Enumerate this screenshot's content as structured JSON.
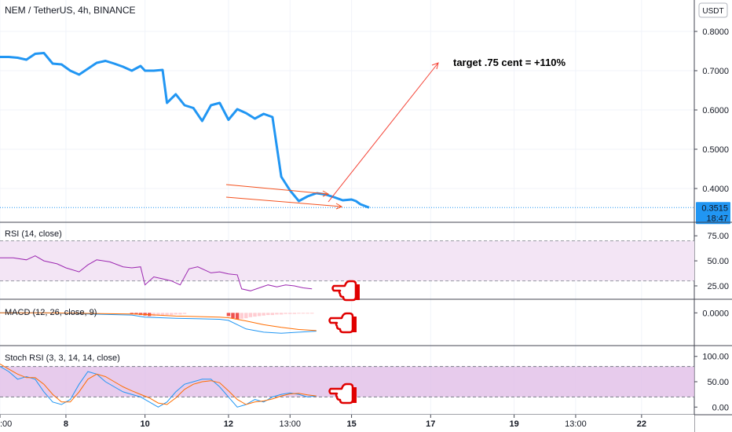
{
  "header": {
    "title": "NEM / TetherUS, 4h, BINANCE",
    "currency_button": "USDT"
  },
  "colors": {
    "price_line": "#2196f3",
    "annotation": "#f44336",
    "rsi_line": "#9c27b0",
    "rsi_band": "#f3e5f5",
    "stoch_band": "#e1bee7",
    "macd_line": "#2196f3",
    "signal_line": "#ff6d00",
    "hist_neg_strong": "#ef5350",
    "hist_neg_weak": "#ffcdd2",
    "price_tag": "#2196f3",
    "grid": "#f0f3fa"
  },
  "icons": {
    "pointing_hand": "pointing-hand-icon"
  },
  "chart_data": [
    {
      "type": "line",
      "pane": "price",
      "title": "NEM / TetherUS, 4h, BINANCE",
      "ylim": [
        0.33,
        0.83
      ],
      "y_ticks": [
        0.4,
        0.5,
        0.6,
        0.7,
        0.8
      ],
      "y_tick_labels": [
        "0.4000",
        "0.5000",
        "0.6000",
        "0.7000",
        "0.8000"
      ],
      "x_ticks": [
        {
          "x": 0,
          "label": ":00"
        },
        {
          "x": 15,
          "label": "8"
        },
        {
          "x": 33,
          "label": "10"
        },
        {
          "x": 52,
          "label": "12"
        },
        {
          "x": 66,
          "label": "13:00"
        },
        {
          "x": 80,
          "label": "15"
        },
        {
          "x": 98,
          "label": "17"
        },
        {
          "x": 117,
          "label": "19"
        },
        {
          "x": 131,
          "label": "13:00"
        },
        {
          "x": 146,
          "label": "22"
        }
      ],
      "xlim": [
        0,
        158
      ],
      "x": [
        0,
        2,
        4,
        6,
        8,
        10,
        12,
        14,
        16,
        18,
        20,
        22,
        24,
        26,
        28,
        30,
        32,
        33,
        35,
        37,
        38,
        40,
        42,
        44,
        46,
        48,
        50,
        52,
        54,
        56,
        58,
        60,
        62,
        64,
        66,
        68,
        70,
        72
      ],
      "values": [
        0.735,
        0.735,
        0.733,
        0.728,
        0.743,
        0.745,
        0.718,
        0.716,
        0.7,
        0.69,
        0.705,
        0.72,
        0.725,
        0.718,
        0.71,
        0.7,
        0.712,
        0.7,
        0.7,
        0.702,
        0.618,
        0.64,
        0.612,
        0.605,
        0.572,
        0.612,
        0.618,
        0.575,
        0.602,
        0.592,
        0.578,
        0.59,
        0.582,
        0.43,
        0.395,
        0.368,
        0.38,
        0.388
      ],
      "last_value_label": "0.3515",
      "countdown_label": "18:47",
      "last_value": 0.3515,
      "current_price_line": 0.3515
    },
    {
      "type": "line",
      "pane": "rsi",
      "title": "RSI (14, close)",
      "ylim": [
        14,
        83
      ],
      "y_ticks": [
        25,
        50,
        75
      ],
      "y_tick_labels": [
        "25.00",
        "50.00",
        "75.00"
      ],
      "band": [
        30,
        70
      ],
      "x": [
        0,
        3,
        6,
        8,
        10,
        13,
        15,
        18,
        20,
        22,
        25,
        28,
        30,
        32,
        33,
        35,
        37,
        39,
        41,
        43,
        45,
        48,
        50,
        52,
        54,
        55,
        57,
        59,
        61,
        63,
        65,
        67,
        69,
        71
      ],
      "values": [
        53,
        53,
        51,
        55,
        50,
        47,
        43,
        39,
        46,
        51,
        49,
        44,
        43,
        44,
        26,
        34,
        32,
        30,
        26,
        42,
        44,
        38,
        39,
        37,
        36,
        22,
        20,
        23,
        26,
        24,
        26,
        25,
        23,
        22
      ]
    },
    {
      "type": "line",
      "pane": "macd",
      "title": "MACD (12, 26, close, 9)",
      "y_ticks": [
        0
      ],
      "y_tick_labels": [
        "0.0000"
      ],
      "ylim": [
        -0.058,
        0.018
      ],
      "series": [
        {
          "name": "",
          "x": [
            0,
            10,
            20,
            30,
            33,
            40,
            50,
            52,
            56,
            60,
            64,
            68,
            72
          ],
          "values": [
            0,
            0,
            -0.002,
            -0.004,
            -0.008,
            -0.01,
            -0.012,
            -0.014,
            -0.03,
            -0.036,
            -0.038,
            -0.036,
            -0.034
          ]
        },
        {
          "name": "",
          "x": [
            0,
            10,
            20,
            30,
            33,
            40,
            50,
            52,
            56,
            60,
            64,
            68,
            72
          ],
          "values": [
            0,
            0,
            -0.001,
            -0.002,
            -0.003,
            -0.006,
            -0.008,
            -0.009,
            -0.015,
            -0.022,
            -0.027,
            -0.031,
            -0.033
          ]
        }
      ],
      "histogram": {
        "x": [
          30,
          31,
          32,
          33,
          34,
          35,
          36,
          37,
          38,
          39,
          40,
          41,
          42,
          52,
          53,
          54,
          55,
          56,
          57,
          58,
          59,
          60,
          61,
          62,
          63,
          64,
          65,
          66,
          67,
          68,
          69,
          70,
          71
        ],
        "values": [
          -0.002,
          -0.003,
          -0.004,
          -0.005,
          -0.006,
          -0.006,
          -0.005,
          -0.005,
          -0.004,
          -0.004,
          -0.003,
          -0.003,
          -0.002,
          -0.006,
          -0.01,
          -0.012,
          -0.011,
          -0.01,
          -0.008,
          -0.007,
          -0.006,
          -0.005,
          -0.004,
          -0.004,
          -0.003,
          -0.003,
          -0.002,
          -0.002,
          -0.002,
          -0.001,
          -0.001,
          -0.001,
          -0.001
        ]
      }
    },
    {
      "type": "line",
      "pane": "stoch",
      "title": "Stoch RSI (3, 3, 14, 14, close)",
      "ylim": [
        -12,
        112
      ],
      "y_ticks": [
        0,
        50,
        100
      ],
      "y_tick_labels": [
        "0.00",
        "50.00",
        "100.00"
      ],
      "band": [
        20,
        80
      ],
      "series": [
        {
          "name": "",
          "x": [
            0,
            2,
            4,
            6,
            8,
            10,
            12,
            14,
            16,
            18,
            20,
            22,
            24,
            26,
            28,
            30,
            32,
            34,
            36,
            38,
            40,
            42,
            44,
            46,
            48,
            50,
            52,
            54,
            56,
            58,
            60,
            62,
            64,
            66,
            68,
            70,
            72
          ],
          "values": [
            80,
            70,
            55,
            60,
            55,
            30,
            10,
            5,
            15,
            45,
            70,
            65,
            50,
            40,
            30,
            25,
            20,
            10,
            0,
            10,
            30,
            45,
            50,
            55,
            55,
            40,
            20,
            0,
            5,
            15,
            10,
            20,
            25,
            28,
            25,
            20,
            22
          ]
        },
        {
          "name": "",
          "x": [
            0,
            2,
            4,
            6,
            8,
            10,
            12,
            14,
            16,
            18,
            20,
            22,
            24,
            26,
            28,
            30,
            32,
            34,
            36,
            38,
            40,
            42,
            44,
            46,
            48,
            50,
            52,
            54,
            56,
            58,
            60,
            62,
            64,
            66,
            68,
            70,
            72
          ],
          "values": [
            85,
            75,
            65,
            58,
            58,
            45,
            25,
            10,
            10,
            30,
            55,
            65,
            60,
            50,
            40,
            32,
            25,
            18,
            8,
            5,
            18,
            35,
            45,
            50,
            52,
            48,
            32,
            15,
            5,
            10,
            12,
            16,
            22,
            26,
            27,
            24,
            22
          ]
        }
      ]
    }
  ],
  "annotations": {
    "target_text": "target .75 cent = +110%"
  }
}
